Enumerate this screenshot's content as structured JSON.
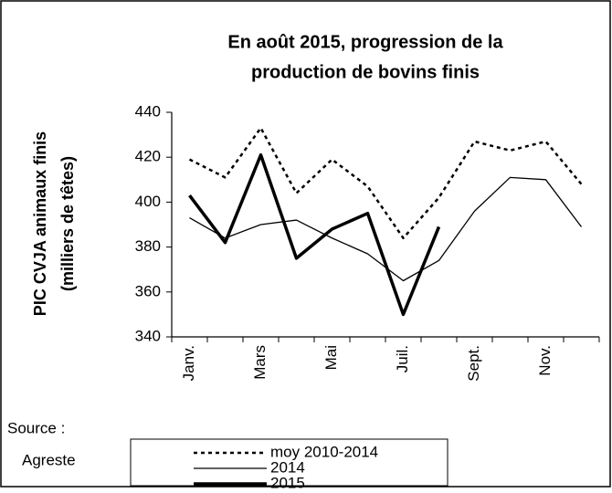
{
  "chart_data": {
    "type": "line",
    "title": [
      "En août 2015,  progression de la",
      "production de bovins finis"
    ],
    "ylabel": [
      "PIC CVJA animaux finis",
      "(milliers de têtes)"
    ],
    "categories": [
      "Janv.",
      null,
      "Mars",
      null,
      "Mai",
      null,
      "Juil.",
      null,
      "Sept.",
      null,
      "Nov.",
      null
    ],
    "series": [
      {
        "name": "moy 2010-2014",
        "color": "#000000",
        "dash": "dotted",
        "width": 2.5,
        "values": [
          419,
          411,
          433,
          404,
          419,
          407,
          384,
          402,
          427,
          423,
          427,
          408
        ]
      },
      {
        "name": "2014",
        "color": "#000000",
        "dash": "solid",
        "width": 1.3,
        "values": [
          393,
          384,
          390,
          392,
          384,
          377,
          365,
          374,
          396,
          411,
          410,
          389
        ]
      },
      {
        "name": "2015",
        "color": "#000000",
        "dash": "solid",
        "width": 3.5,
        "values": [
          403,
          382,
          421,
          375,
          388,
          395,
          350,
          389,
          null,
          null,
          null,
          null
        ]
      }
    ],
    "ylim": [
      340,
      440
    ],
    "yticks": [
      340,
      360,
      380,
      400,
      420,
      440
    ],
    "grid": false,
    "source": [
      "Source :",
      "Agreste"
    ]
  }
}
